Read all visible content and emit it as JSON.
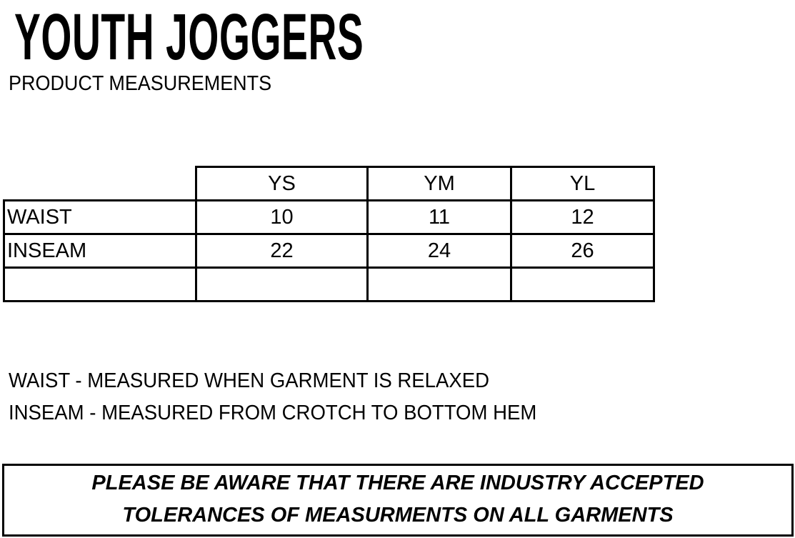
{
  "title": "YOUTH JOGGERS",
  "subtitle": "PRODUCT MEASUREMENTS",
  "table": {
    "columns": [
      "YS",
      "YM",
      "YL"
    ],
    "rows": [
      {
        "label": "WAIST",
        "values": [
          "10",
          "11",
          "12"
        ]
      },
      {
        "label": "INSEAM",
        "values": [
          "22",
          "24",
          "26"
        ]
      },
      {
        "label": "",
        "values": [
          "",
          "",
          ""
        ]
      }
    ]
  },
  "notes": [
    "WAIST - MEASURED WHEN GARMENT IS RELAXED",
    "INSEAM - MEASURED FROM CROTCH TO BOTTOM HEM"
  ],
  "disclaimer": {
    "line1": "PLEASE BE AWARE THAT THERE ARE INDUSTRY ACCEPTED",
    "line2": "TOLERANCES OF MEASURMENTS ON ALL GARMENTS"
  }
}
